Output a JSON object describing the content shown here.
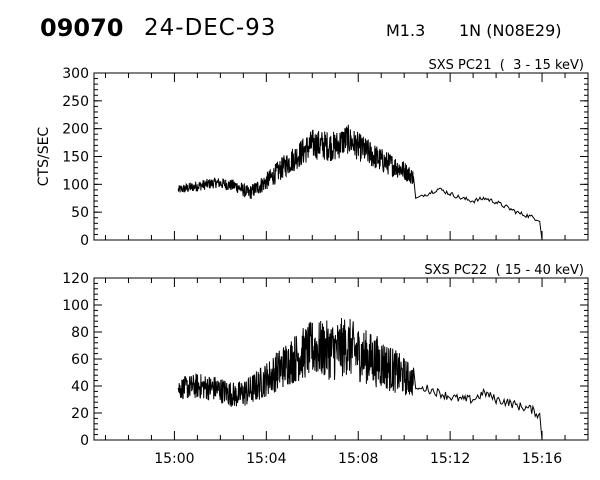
{
  "header": {
    "event_id": "09070",
    "date": "24-DEC-93",
    "flare_class": "M1.3",
    "location": "1N (N08E29)"
  },
  "chart_data": [
    {
      "type": "line",
      "title": "SXS PC21  (  3 - 15 keV)",
      "ylabel": "CTS/SEC",
      "xlabel": "",
      "x_unit": "UT time (hh:mm)",
      "xlim": [
        "14:56:30",
        "15:18:00"
      ],
      "ylim": [
        0,
        300
      ],
      "yticks": [
        0,
        50,
        100,
        150,
        200,
        250,
        300
      ],
      "xticks": [
        "15:00",
        "15:04",
        "15:08",
        "15:12",
        "15:16"
      ],
      "grid": false,
      "x": [
        "15:00:10",
        "15:01:00",
        "15:01:50",
        "15:02:40",
        "15:03:15",
        "15:04:00",
        "15:05:00",
        "15:06:00",
        "15:07:00",
        "15:07:30",
        "15:08:00",
        "15:09:00",
        "15:10:00",
        "15:10:25",
        "15:10:30",
        "15:11:00",
        "15:11:30",
        "15:12:00",
        "15:12:30",
        "15:13:00",
        "15:13:30",
        "15:14:00",
        "15:14:30",
        "15:15:00",
        "15:15:30",
        "15:15:55",
        "15:16:00"
      ],
      "values": [
        90,
        97,
        103,
        97,
        84,
        105,
        140,
        172,
        168,
        182,
        168,
        143,
        125,
        112,
        75,
        83,
        92,
        83,
        75,
        70,
        75,
        68,
        58,
        48,
        42,
        36,
        0
      ],
      "noise": [
        10,
        12,
        12,
        14,
        16,
        20,
        28,
        34,
        34,
        34,
        32,
        28,
        22,
        18,
        0,
        5,
        5,
        5,
        5,
        5,
        5,
        5,
        5,
        5,
        5,
        5,
        0
      ],
      "gap": [
        "15:10:25",
        "15:10:30"
      ]
    },
    {
      "type": "line",
      "title": "SXS PC22  ( 15 - 40 keV)",
      "ylabel": "",
      "xlabel": "",
      "x_unit": "UT time (hh:mm)",
      "xlim": [
        "14:56:30",
        "15:18:00"
      ],
      "ylim": [
        0,
        120
      ],
      "yticks": [
        0,
        20,
        40,
        60,
        80,
        100,
        120
      ],
      "xticks": [
        "15:00",
        "15:04",
        "15:08",
        "15:12",
        "15:16"
      ],
      "grid": false,
      "x": [
        "15:00:10",
        "15:01:00",
        "15:01:50",
        "15:02:40",
        "15:03:15",
        "15:04:00",
        "15:05:00",
        "15:06:00",
        "15:07:00",
        "15:07:30",
        "15:08:00",
        "15:09:00",
        "15:10:00",
        "15:10:25",
        "15:10:30",
        "15:11:00",
        "15:11:30",
        "15:12:00",
        "15:12:30",
        "15:13:00",
        "15:13:30",
        "15:14:00",
        "15:14:30",
        "15:15:00",
        "15:15:30",
        "15:15:55",
        "15:16:00"
      ],
      "values": [
        38,
        40,
        38,
        33,
        36,
        45,
        58,
        68,
        66,
        70,
        64,
        57,
        47,
        43,
        38,
        38,
        35,
        32,
        30,
        30,
        35,
        30,
        28,
        25,
        23,
        18,
        0
      ],
      "noise": [
        10,
        12,
        12,
        12,
        14,
        16,
        22,
        26,
        28,
        28,
        26,
        24,
        18,
        14,
        0,
        4,
        4,
        4,
        4,
        4,
        4,
        4,
        4,
        4,
        4,
        4,
        0
      ],
      "gap": [
        "15:10:25",
        "15:10:30"
      ]
    }
  ]
}
